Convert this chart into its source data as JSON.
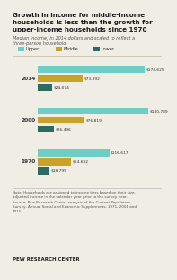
{
  "title_lines": [
    "Growth in income for middle-income",
    "households is less than the growth for",
    "upper-income households since 1970"
  ],
  "subtitle": "Median income, in 2014 dollars and scaled to reflect a\nthree-person household",
  "years": [
    "2014",
    "2000",
    "1970"
  ],
  "upper": [
    174625,
    180789,
    116617
  ],
  "middle": [
    73392,
    76819,
    54682
  ],
  "lower": [
    24074,
    26496,
    18799
  ],
  "upper_labels": [
    "$174,625",
    "$180,789",
    "$116,617"
  ],
  "middle_labels": [
    "$73,392",
    "$76,819",
    "$54,682"
  ],
  "lower_labels": [
    "$24,074",
    "$26,496",
    "$18,799"
  ],
  "color_upper": "#6ecec5",
  "color_middle": "#c9a227",
  "color_lower": "#2d6b5e",
  "max_val": 195000,
  "note1": "Note: Households are assigned to income tiers based on their size-",
  "note2": "adjusted income in the calendar year prior to the survey year.",
  "source1": "Source: Pew Research Center analysis of the Current Population",
  "source2": "Survey, Annual Social and Economic Supplements, 1971, 2001 and",
  "source3": "2015",
  "footer": "PEW RESEARCH CENTER",
  "bg_color": "#f0ede5",
  "legend_labels": [
    "Upper",
    "Middle",
    "Lower"
  ]
}
